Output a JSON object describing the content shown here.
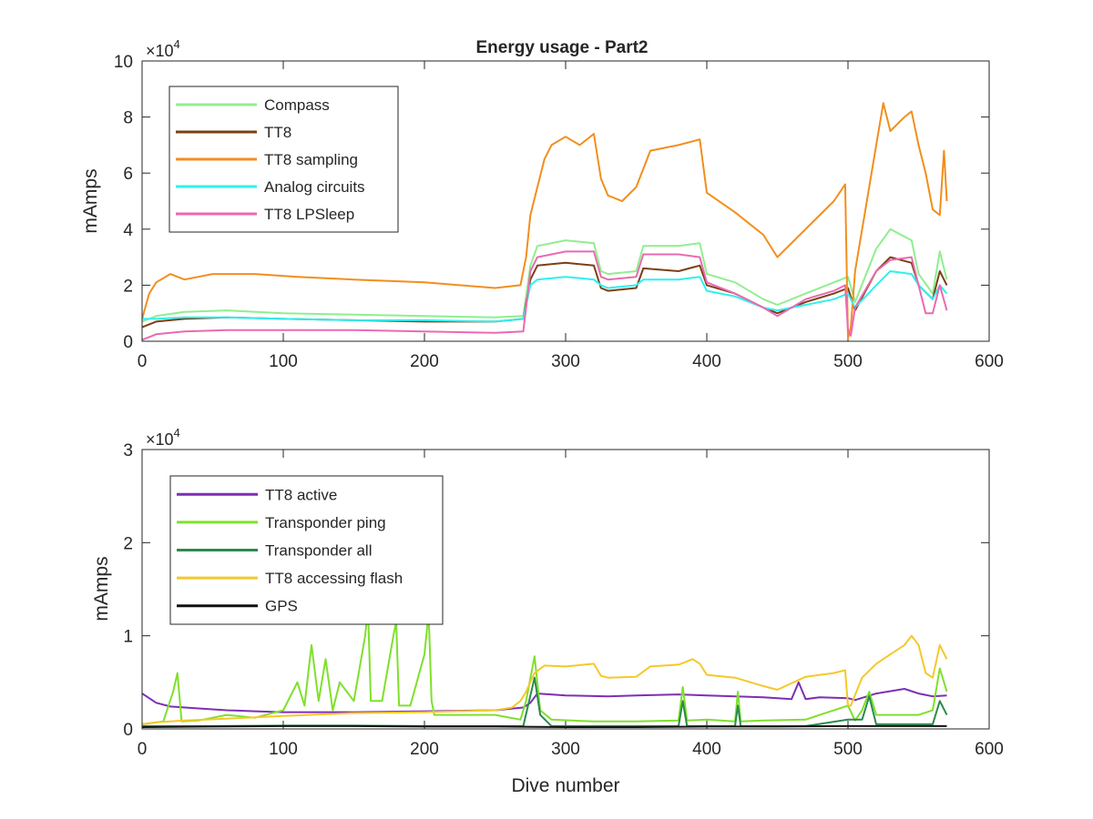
{
  "chart_data": [
    {
      "type": "line",
      "title": "Energy usage - Part2",
      "xlabel": "",
      "ylabel": "mAmps",
      "xlim": [
        0,
        600
      ],
      "ylim": [
        0,
        100000
      ],
      "x_ticks": [
        "0",
        "100",
        "200",
        "300",
        "400",
        "500",
        "600"
      ],
      "y_ticks": [
        "0",
        "2",
        "4",
        "6",
        "8",
        "10"
      ],
      "exponent_label": "×10",
      "exponent_power": "4",
      "legend_position": "top-left",
      "grid": false,
      "series": [
        {
          "name": "Compass",
          "color": "#90ee90",
          "x": [
            0,
            10,
            30,
            60,
            100,
            150,
            200,
            250,
            270,
            275,
            280,
            300,
            320,
            325,
            330,
            350,
            355,
            380,
            395,
            400,
            420,
            440,
            450,
            470,
            490,
            500,
            505,
            520,
            530,
            545,
            550,
            560,
            565,
            570
          ],
          "y": [
            7000,
            9000,
            10500,
            11000,
            10000,
            9500,
            9000,
            8500,
            9000,
            27000,
            34000,
            36000,
            35000,
            25000,
            24000,
            25000,
            34000,
            34000,
            35000,
            24000,
            21000,
            15000,
            13000,
            17000,
            21000,
            23000,
            14000,
            33000,
            40000,
            36000,
            24000,
            17000,
            32000,
            22000
          ]
        },
        {
          "name": "TT8",
          "color": "#7b3f16",
          "x": [
            0,
            10,
            30,
            60,
            100,
            150,
            200,
            250,
            270,
            275,
            280,
            300,
            320,
            325,
            330,
            350,
            355,
            380,
            395,
            400,
            420,
            440,
            450,
            470,
            490,
            500,
            505,
            520,
            530,
            545,
            550,
            560,
            565,
            570
          ],
          "y": [
            5000,
            7000,
            8000,
            8500,
            8000,
            7500,
            7000,
            7000,
            8000,
            22000,
            27000,
            28000,
            27000,
            19000,
            18000,
            19000,
            26000,
            25000,
            27000,
            20000,
            17000,
            12000,
            10000,
            14000,
            17000,
            19000,
            11000,
            25000,
            30000,
            28000,
            20000,
            15000,
            25000,
            20000
          ]
        },
        {
          "name": "TT8 sampling",
          "color": "#f28e1c",
          "x": [
            0,
            5,
            10,
            20,
            30,
            50,
            80,
            110,
            150,
            200,
            250,
            268,
            272,
            275,
            280,
            285,
            290,
            300,
            310,
            320,
            325,
            330,
            340,
            350,
            360,
            380,
            395,
            400,
            420,
            440,
            450,
            470,
            490,
            498,
            500,
            502,
            505,
            515,
            520,
            525,
            530,
            540,
            545,
            550,
            555,
            560,
            565,
            568,
            570
          ],
          "y": [
            8000,
            17000,
            21000,
            24000,
            22000,
            24000,
            24000,
            23000,
            22000,
            21000,
            19000,
            20000,
            30000,
            45000,
            55000,
            65000,
            70000,
            73000,
            70000,
            74000,
            58000,
            52000,
            50000,
            55000,
            68000,
            70000,
            72000,
            53000,
            46000,
            38000,
            30000,
            40000,
            50000,
            56000,
            1000,
            5000,
            25000,
            55000,
            70000,
            85000,
            75000,
            80000,
            82000,
            70000,
            60000,
            47000,
            45000,
            68000,
            50000
          ]
        },
        {
          "name": "Analog circuits",
          "color": "#2ef0f0",
          "x": [
            0,
            10,
            30,
            60,
            100,
            150,
            200,
            250,
            270,
            275,
            280,
            300,
            320,
            325,
            330,
            350,
            355,
            380,
            395,
            400,
            420,
            440,
            450,
            470,
            490,
            500,
            505,
            520,
            530,
            545,
            550,
            560,
            565,
            570
          ],
          "y": [
            8000,
            8000,
            8500,
            8500,
            8000,
            7500,
            7500,
            7000,
            8000,
            20000,
            22000,
            23000,
            22000,
            20000,
            19000,
            20000,
            22000,
            22000,
            23000,
            18000,
            16000,
            12000,
            11000,
            13000,
            15000,
            17000,
            12000,
            20000,
            25000,
            24000,
            20000,
            15000,
            20000,
            17000
          ]
        },
        {
          "name": "TT8 LPSleep",
          "color": "#ea6ab0",
          "x": [
            0,
            5,
            10,
            30,
            60,
            100,
            150,
            200,
            250,
            270,
            275,
            280,
            300,
            320,
            325,
            330,
            350,
            355,
            380,
            395,
            400,
            420,
            440,
            450,
            470,
            490,
            498,
            500,
            502,
            505,
            520,
            530,
            545,
            550,
            555,
            560,
            565,
            570
          ],
          "y": [
            500,
            1500,
            2500,
            3500,
            4000,
            4000,
            4000,
            3500,
            3000,
            3500,
            25000,
            30000,
            32000,
            32000,
            23000,
            22000,
            23000,
            31000,
            31000,
            30000,
            21000,
            17000,
            12000,
            9000,
            15000,
            18000,
            20000,
            4000,
            2000,
            12000,
            25000,
            29000,
            30000,
            20000,
            10000,
            10000,
            20000,
            11000
          ]
        }
      ]
    },
    {
      "type": "line",
      "title": "",
      "xlabel": "Dive number",
      "ylabel": "mAmps",
      "xlim": [
        0,
        600
      ],
      "ylim": [
        0,
        30000
      ],
      "x_ticks": [
        "0",
        "100",
        "200",
        "300",
        "400",
        "500",
        "600"
      ],
      "y_ticks": [
        "0",
        "1",
        "2",
        "3"
      ],
      "exponent_label": "×10",
      "exponent_power": "4",
      "legend_position": "top-left",
      "grid": false,
      "series": [
        {
          "name": "TT8 active",
          "color": "#7e2fb4",
          "x": [
            0,
            10,
            20,
            40,
            60,
            80,
            100,
            150,
            200,
            250,
            270,
            275,
            280,
            300,
            330,
            350,
            380,
            400,
            420,
            440,
            460,
            465,
            470,
            480,
            500,
            505,
            520,
            540,
            550,
            560,
            570
          ],
          "y": [
            3800,
            2800,
            2400,
            2200,
            2000,
            1900,
            1800,
            1800,
            1900,
            2000,
            2300,
            2800,
            3800,
            3600,
            3500,
            3600,
            3700,
            3600,
            3500,
            3400,
            3200,
            5000,
            3200,
            3400,
            3300,
            3100,
            3800,
            4300,
            3800,
            3500,
            3600
          ]
        },
        {
          "name": "Transponder ping",
          "color": "#7fe02c",
          "x": [
            0,
            15,
            22,
            25,
            28,
            40,
            60,
            80,
            100,
            110,
            115,
            120,
            125,
            130,
            135,
            140,
            150,
            158,
            160,
            162,
            170,
            178,
            180,
            182,
            190,
            200,
            203,
            205,
            207,
            220,
            250,
            268,
            272,
            278,
            282,
            290,
            320,
            350,
            380,
            383,
            386,
            400,
            420,
            422,
            424,
            440,
            470,
            480,
            500,
            505,
            510,
            515,
            520,
            550,
            560,
            565,
            570
          ],
          "y": [
            500,
            800,
            4000,
            6000,
            800,
            900,
            1500,
            1200,
            2000,
            5000,
            2500,
            9000,
            3000,
            7500,
            2000,
            5000,
            3000,
            10000,
            13000,
            3000,
            3000,
            10000,
            11500,
            2500,
            2500,
            8000,
            12500,
            3000,
            1500,
            1500,
            1500,
            1000,
            3000,
            7800,
            2000,
            1000,
            800,
            800,
            900,
            4500,
            900,
            1000,
            800,
            4000,
            800,
            900,
            1000,
            1500,
            2500,
            900,
            2000,
            4000,
            1500,
            1500,
            2000,
            6500,
            4000
          ]
        },
        {
          "name": "Transponder all",
          "color": "#2b8a4d",
          "x": [
            0,
            50,
            100,
            150,
            200,
            250,
            270,
            278,
            282,
            290,
            350,
            380,
            383,
            386,
            400,
            420,
            422,
            424,
            470,
            500,
            510,
            515,
            520,
            560,
            565,
            570
          ],
          "y": [
            300,
            300,
            350,
            350,
            300,
            300,
            300,
            5500,
            1500,
            300,
            300,
            300,
            3000,
            300,
            300,
            300,
            2500,
            300,
            300,
            1000,
            1000,
            3500,
            500,
            500,
            3000,
            1500
          ]
        },
        {
          "name": "TT8 accessing flash",
          "color": "#f5c82a",
          "x": [
            0,
            10,
            30,
            60,
            100,
            150,
            200,
            250,
            262,
            268,
            272,
            278,
            285,
            300,
            320,
            325,
            330,
            350,
            360,
            380,
            390,
            395,
            400,
            420,
            440,
            450,
            470,
            490,
            498,
            500,
            502,
            510,
            520,
            530,
            540,
            545,
            550,
            555,
            560,
            565,
            570
          ],
          "y": [
            500,
            700,
            900,
            1100,
            1400,
            1700,
            1800,
            2000,
            2300,
            3000,
            4000,
            6000,
            6800,
            6700,
            7000,
            5700,
            5500,
            5600,
            6700,
            6900,
            7500,
            7000,
            5800,
            5500,
            4600,
            4200,
            5600,
            6000,
            6300,
            2500,
            2500,
            5500,
            7000,
            8000,
            9000,
            10000,
            9000,
            6000,
            5500,
            9000,
            7500
          ]
        },
        {
          "name": "GPS",
          "color": "#111111",
          "x": [
            0,
            50,
            100,
            150,
            200,
            250,
            300,
            350,
            400,
            450,
            500,
            550,
            570
          ],
          "y": [
            200,
            250,
            300,
            300,
            250,
            250,
            200,
            200,
            250,
            250,
            300,
            300,
            300
          ]
        }
      ]
    }
  ]
}
